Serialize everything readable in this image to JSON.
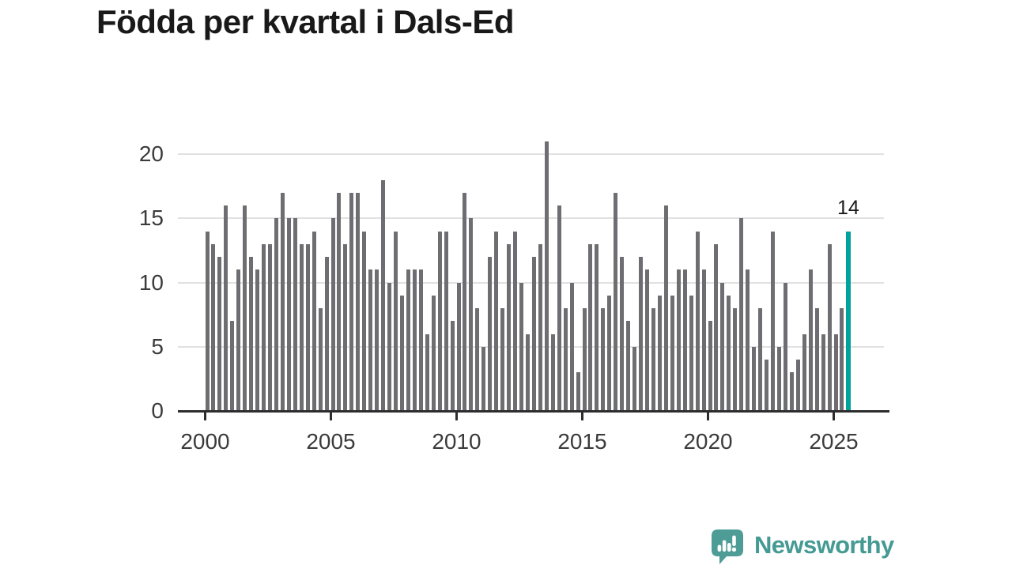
{
  "page_title": "Födda per kvartal i Dals-Ed",
  "annotation": {
    "last_value": "14"
  },
  "branding": {
    "wordmark": "Newsworthy"
  },
  "colors": {
    "bar": "#6e6e72",
    "highlight": "#00a39b",
    "gridline": "#e1e1e1",
    "axis": "#2d2d2d",
    "tick_text": "#3b3b3b",
    "title_text": "#191919",
    "brand_icon": "#4d9c95",
    "brand_text": "#459a93"
  },
  "chart_data": {
    "type": "bar",
    "title": "Födda per kvartal i Dals-Ed",
    "x_start": {
      "year": 2000,
      "quarter": 1
    },
    "x_end": {
      "year": 2025,
      "quarter": 3
    },
    "x_tick_labels": [
      "2000",
      "2005",
      "2010",
      "2015",
      "2020",
      "2025"
    ],
    "y_ticks": [
      0,
      5,
      10,
      15,
      20
    ],
    "ylim": [
      0,
      21
    ],
    "grid": "horizontal",
    "legend": "none",
    "highlight_last_bar": true,
    "last_bar_label": "14",
    "values": [
      14,
      13,
      12,
      16,
      7,
      11,
      16,
      12,
      11,
      13,
      13,
      15,
      17,
      15,
      15,
      13,
      13,
      14,
      8,
      12,
      15,
      17,
      13,
      17,
      17,
      14,
      11,
      11,
      18,
      10,
      14,
      9,
      11,
      11,
      11,
      6,
      9,
      14,
      14,
      7,
      10,
      17,
      15,
      8,
      5,
      12,
      14,
      8,
      13,
      14,
      10,
      6,
      12,
      13,
      21,
      6,
      16,
      8,
      10,
      3,
      8,
      13,
      13,
      8,
      9,
      17,
      12,
      7,
      5,
      12,
      11,
      8,
      9,
      16,
      9,
      11,
      11,
      9,
      14,
      11,
      7,
      13,
      10,
      9,
      8,
      15,
      11,
      5,
      8,
      4,
      14,
      5,
      10,
      3,
      4,
      6,
      11,
      8,
      6,
      13,
      6,
      8,
      14
    ]
  }
}
